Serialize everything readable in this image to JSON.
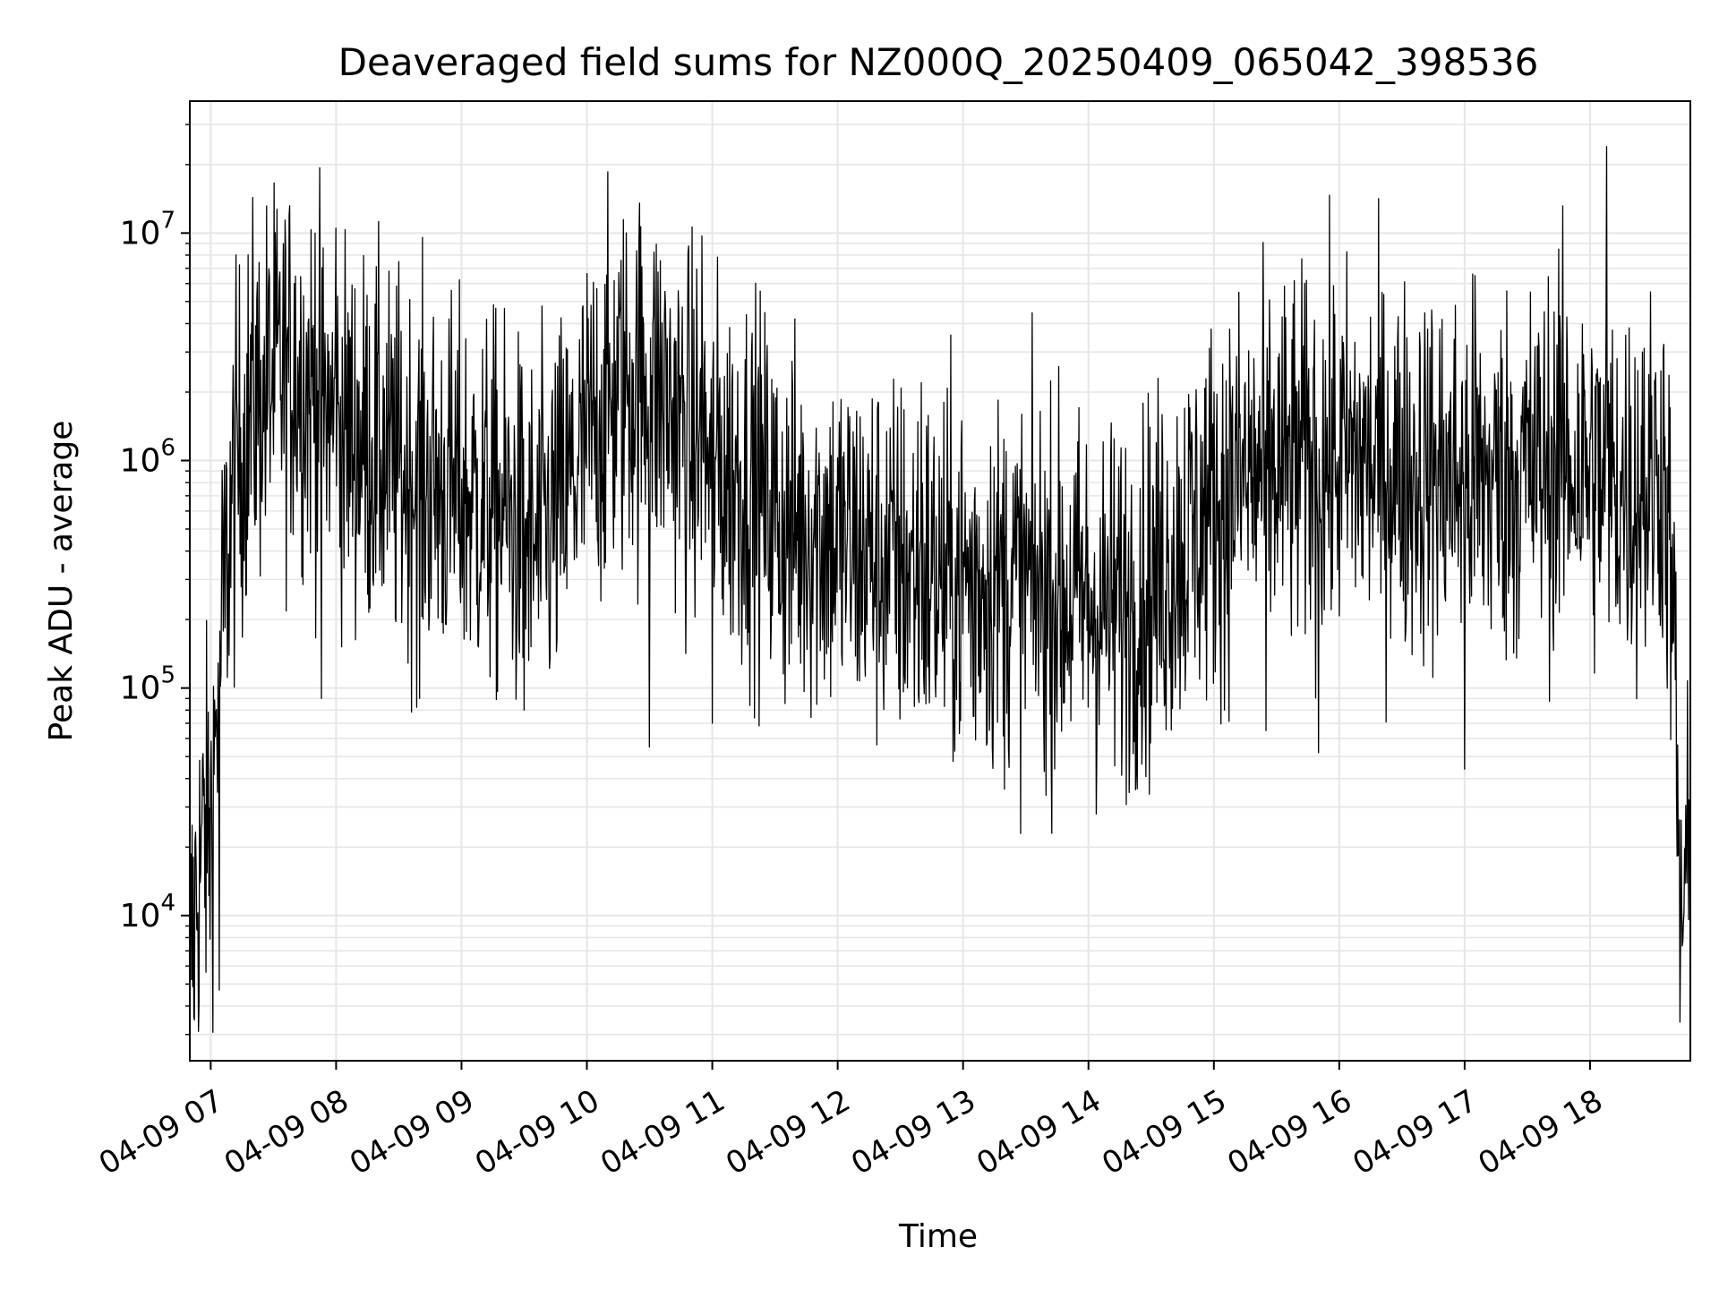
{
  "chart_data": {
    "type": "line",
    "title": "Deaveraged field sums for NZ000Q_20250409_065042_398536",
    "xlabel": "Time",
    "ylabel": "Peak ADU - average",
    "y_scale": "log",
    "ylim": [
      2300,
      38000000
    ],
    "xlim": [
      "2025-04-09 06:50",
      "2025-04-09 18:48"
    ],
    "x_ticks": [
      {
        "t": "2025-04-09 07:00",
        "label": "04-09 07"
      },
      {
        "t": "2025-04-09 08:00",
        "label": "04-09 08"
      },
      {
        "t": "2025-04-09 09:00",
        "label": "04-09 09"
      },
      {
        "t": "2025-04-09 10:00",
        "label": "04-09 10"
      },
      {
        "t": "2025-04-09 11:00",
        "label": "04-09 11"
      },
      {
        "t": "2025-04-09 12:00",
        "label": "04-09 12"
      },
      {
        "t": "2025-04-09 13:00",
        "label": "04-09 13"
      },
      {
        "t": "2025-04-09 14:00",
        "label": "04-09 14"
      },
      {
        "t": "2025-04-09 15:00",
        "label": "04-09 15"
      },
      {
        "t": "2025-04-09 16:00",
        "label": "04-09 16"
      },
      {
        "t": "2025-04-09 17:00",
        "label": "04-09 17"
      },
      {
        "t": "2025-04-09 18:00",
        "label": "04-09 18"
      }
    ],
    "y_ticks": [
      {
        "value": 10000,
        "base": "10",
        "exp": "4"
      },
      {
        "value": 100000,
        "base": "10",
        "exp": "5"
      },
      {
        "value": 1000000,
        "base": "10",
        "exp": "6"
      },
      {
        "value": 10000000,
        "base": "10",
        "exp": "7"
      }
    ],
    "grid": true,
    "line_color": "#000000",
    "grid_color": "#e6e6e6",
    "series": [
      {
        "x": [
          "2025-04-09 06:50",
          "2025-04-09 06:53",
          "2025-04-09 06:56",
          "2025-04-09 07:00",
          "2025-04-09 07:04",
          "2025-04-09 07:08",
          "2025-04-09 07:12",
          "2025-04-09 07:20",
          "2025-04-09 07:30",
          "2025-04-09 07:40",
          "2025-04-09 07:50",
          "2025-04-09 08:00",
          "2025-04-09 08:15",
          "2025-04-09 08:30",
          "2025-04-09 08:45",
          "2025-04-09 09:00",
          "2025-04-09 09:20",
          "2025-04-09 09:35",
          "2025-04-09 09:50",
          "2025-04-09 10:05",
          "2025-04-09 10:20",
          "2025-04-09 10:35",
          "2025-04-09 10:50",
          "2025-04-09 11:05",
          "2025-04-09 11:20",
          "2025-04-09 11:35",
          "2025-04-09 11:50",
          "2025-04-09 12:10",
          "2025-04-09 12:30",
          "2025-04-09 12:50",
          "2025-04-09 13:10",
          "2025-04-09 13:30",
          "2025-04-09 13:50",
          "2025-04-09 14:10",
          "2025-04-09 14:30",
          "2025-04-09 14:50",
          "2025-04-09 15:10",
          "2025-04-09 15:30",
          "2025-04-09 15:50",
          "2025-04-09 16:10",
          "2025-04-09 16:30",
          "2025-04-09 16:50",
          "2025-04-09 17:10",
          "2025-04-09 17:30",
          "2025-04-09 17:50",
          "2025-04-09 18:10",
          "2025-04-09 18:25",
          "2025-04-09 18:35",
          "2025-04-09 18:40",
          "2025-04-09 18:43",
          "2025-04-09 18:48"
        ],
        "y": [
          6000,
          12000,
          20000,
          25000,
          120000,
          400000,
          900000,
          1800000,
          2300000,
          2500000,
          2000000,
          1400000,
          1200000,
          900000,
          800000,
          700000,
          600000,
          400000,
          700000,
          1500000,
          2200000,
          2000000,
          1200000,
          900000,
          800000,
          500000,
          500000,
          400000,
          350000,
          300000,
          300000,
          280000,
          250000,
          220000,
          280000,
          500000,
          800000,
          900000,
          1000000,
          1000000,
          900000,
          850000,
          800000,
          900000,
          1000000,
          800000,
          700000,
          1000000,
          200000,
          10000,
          15000
        ],
        "noise": 0.42,
        "spikes": [
          {
            "t": "2025-04-09 06:52",
            "value": 3600
          },
          {
            "t": "2025-04-09 06:57",
            "value": 40000
          },
          {
            "t": "2025-04-09 07:04",
            "value": 4700
          },
          {
            "t": "2025-04-09 07:25",
            "value": 2900000
          },
          {
            "t": "2025-04-09 07:40",
            "value": 6000000
          },
          {
            "t": "2025-04-09 07:50",
            "value": 10000000
          },
          {
            "t": "2025-04-09 07:53",
            "value": 90000
          },
          {
            "t": "2025-04-09 08:00",
            "value": 10500000
          },
          {
            "t": "2025-04-09 08:30",
            "value": 7500000
          },
          {
            "t": "2025-04-09 08:40",
            "value": 90000
          },
          {
            "t": "2025-04-09 09:30",
            "value": 80000
          },
          {
            "t": "2025-04-09 10:25",
            "value": 9500000
          },
          {
            "t": "2025-04-09 10:30",
            "value": 55000
          },
          {
            "t": "2025-04-09 10:55",
            "value": 9700000
          },
          {
            "t": "2025-04-09 11:00",
            "value": 70000
          },
          {
            "t": "2025-04-09 12:40",
            "value": 2200000
          },
          {
            "t": "2025-04-09 13:05",
            "value": 75000
          },
          {
            "t": "2025-04-09 15:05",
            "value": 80000
          },
          {
            "t": "2025-04-09 15:15",
            "value": 2200000
          },
          {
            "t": "2025-04-09 15:25",
            "value": 65000
          },
          {
            "t": "2025-04-09 15:50",
            "value": 52000
          },
          {
            "t": "2025-04-09 17:00",
            "value": 44000
          },
          {
            "t": "2025-04-09 17:05",
            "value": 6500000
          },
          {
            "t": "2025-04-09 17:45",
            "value": 8500000
          },
          {
            "t": "2025-04-09 18:08",
            "value": 24000000
          },
          {
            "t": "2025-04-09 18:25",
            "value": 3000000
          },
          {
            "t": "2025-04-09 18:43",
            "value": 3400
          }
        ]
      }
    ]
  }
}
